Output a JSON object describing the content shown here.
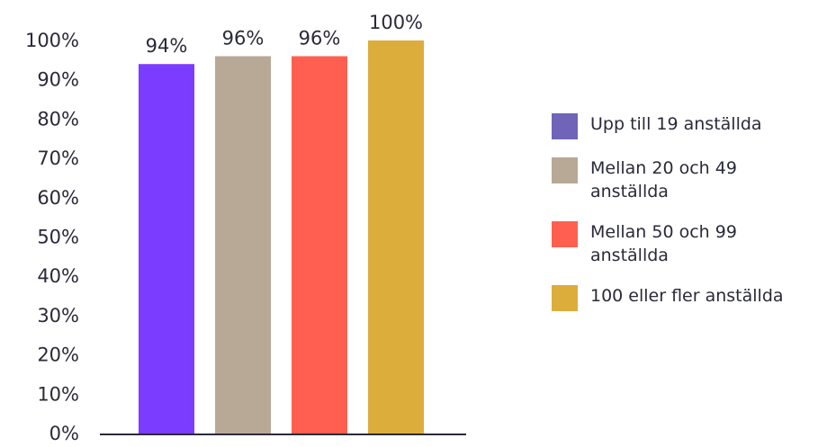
{
  "chart_data": {
    "type": "bar",
    "categories": [
      "Upp till 19 anställda",
      "Mellan 20 och 49 anställda",
      "Mellan 50 och 99 anställda",
      "100 eller fler anställda"
    ],
    "values": [
      94,
      96,
      96,
      100
    ],
    "data_labels": [
      "94%",
      "96%",
      "96%",
      "100%"
    ],
    "bar_colors": [
      "#7b3cff",
      "#b8a896",
      "#ff5f50",
      "#ddad3c"
    ],
    "ylim": [
      0,
      100
    ],
    "yticks": [
      "0%",
      "10%",
      "20%",
      "30%",
      "40%",
      "50%",
      "60%",
      "70%",
      "80%",
      "90%",
      "100%"
    ],
    "title": "",
    "xlabel": "",
    "ylabel": "",
    "grid": false,
    "legend_position": "right",
    "legend": [
      {
        "label": "Upp till 19 anställda",
        "color": "#6f64b8"
      },
      {
        "label": "Mellan 20 och 49 anställda",
        "color": "#b8a896"
      },
      {
        "label": "Mellan 50 och 99 anställda",
        "color": "#ff5f50"
      },
      {
        "label": "100 eller fler anställda",
        "color": "#ddad3c"
      }
    ]
  }
}
